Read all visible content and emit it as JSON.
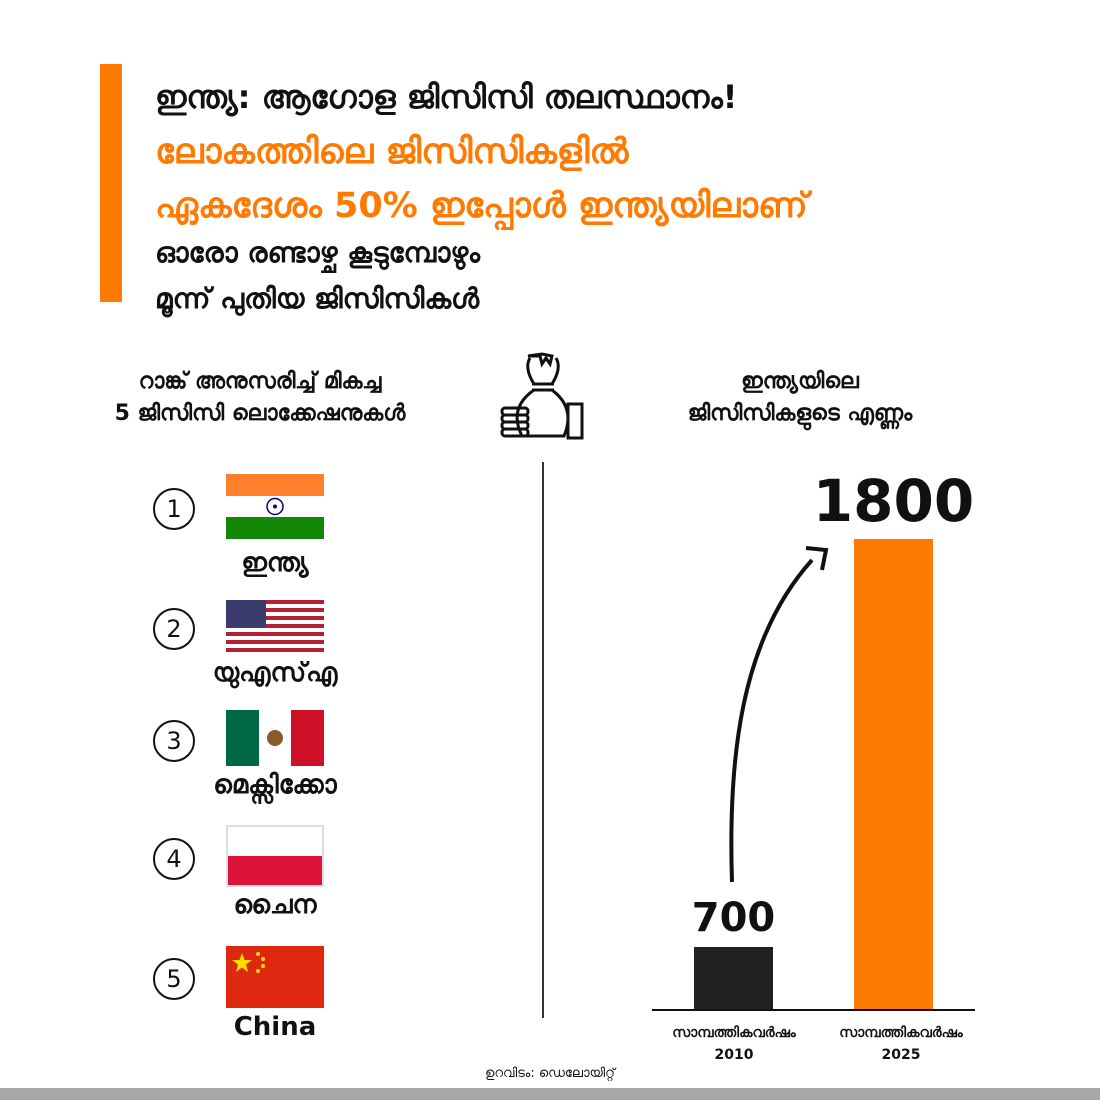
{
  "header": {
    "title": "ഇന്ത്യ: ആഗോള ജിസിസി തലസ്ഥാനം!",
    "highlight_line1": "ലോകത്തിലെ ജിസിസികളിൽ",
    "highlight_line2": "ഏകദേശം 50% ഇപ്പോൾ ഇന്ത്യയിലാണ്",
    "subline1": "ഓരോ രണ്ടാഴ്ച കൂടുമ്പോഴും",
    "subline2": "മൂന്ന് പുതിയ ജിസിസികൾ",
    "accent_color": "#ff7a00"
  },
  "left_panel": {
    "heading_line1": "റാങ്ക് അനുസരിച്ച് മികച്ച",
    "heading_line2": "5 ജിസിസി ലൊക്കേഷനുകൾ",
    "countries": [
      {
        "rank": "1",
        "name": "ഇന്ത്യ",
        "flag": "india-flag-icon"
      },
      {
        "rank": "2",
        "name": "യുഎസ്എ",
        "flag": "usa-flag-icon"
      },
      {
        "rank": "3",
        "name": "മെക്സിക്കോ",
        "flag": "mexico-flag-icon"
      },
      {
        "rank": "4",
        "name": "ചൈന",
        "flag": "poland-flag-icon"
      },
      {
        "rank": "5",
        "name": "China",
        "flag": "china-flag-icon"
      }
    ]
  },
  "center_icon": "money-bag-icon",
  "chart_data": {
    "type": "bar",
    "title": "ഇന്ത്യയിലെ ജിസിസികളുടെ എണ്ണം",
    "title_line1": "ഇന്ത്യയിലെ",
    "title_line2": "ജിസിസികളുടെ എണ്ണം",
    "categories": [
      "സാമ്പത്തികവർഷം 2010",
      "സാമ്പത്തികവർഷം 2025"
    ],
    "category_line1": [
      "സാമ്പത്തികവർഷം",
      "സാമ്പത്തികവർഷം"
    ],
    "category_line2": [
      "2010",
      "2025"
    ],
    "values": [
      700,
      1800
    ],
    "value_labels": [
      "700",
      "1800"
    ],
    "colors": [
      "#222222",
      "#ff7a00"
    ],
    "xlabel": "",
    "ylabel": ""
  },
  "footer": {
    "source": "ഉറവിടം: ഡെലോയിറ്റ്"
  }
}
